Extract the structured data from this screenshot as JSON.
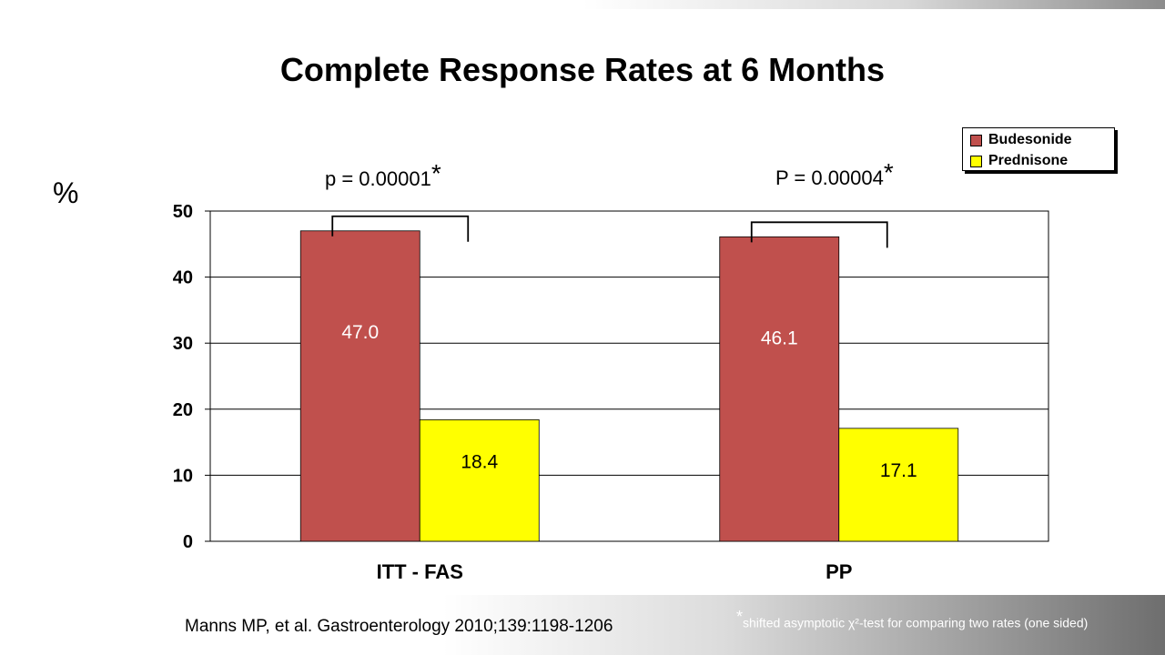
{
  "chart_data": {
    "type": "bar",
    "title": "Complete Response Rates at 6 Months",
    "ylabel": "%",
    "xlabel": "",
    "categories": [
      "ITT - FAS",
      "PP"
    ],
    "series": [
      {
        "name": "Budesonide",
        "values": [
          47.0,
          46.1
        ],
        "labels": [
          "47.0",
          "46.1"
        ],
        "color": "#c0504d"
      },
      {
        "name": "Prednisone",
        "values": [
          18.4,
          17.1
        ],
        "labels": [
          "18.4",
          "17.1"
        ],
        "color": "#ffff00"
      }
    ],
    "ylim": [
      0,
      50
    ],
    "yticks": [
      "0",
      "10",
      "20",
      "30",
      "40",
      "50"
    ],
    "grid": true,
    "legend_position": "top-right",
    "annotations": [
      {
        "text": "p = 0.00001",
        "mark": "*"
      },
      {
        "text": "P = 0.00004",
        "mark": "*"
      }
    ]
  },
  "citation": "Manns MP, et al. Gastroenterology 2010;139:1198-1206",
  "footnote": {
    "mark": "*",
    "text": "shifted asymptotic χ²-test for comparing two rates (one sided)"
  }
}
